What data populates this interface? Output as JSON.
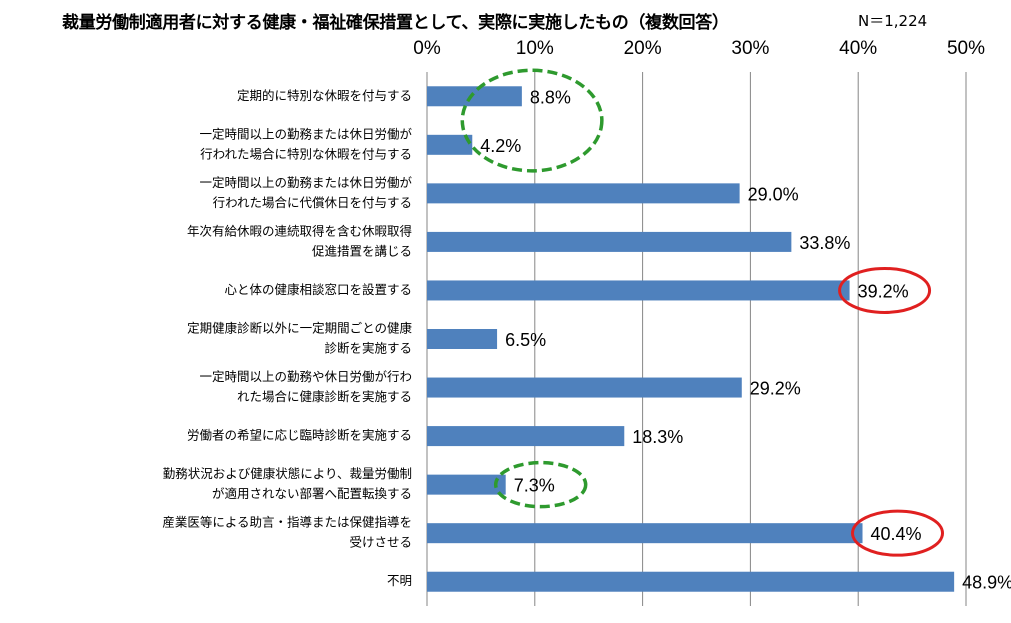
{
  "title": "裁量労働制適用者に対する健康・福祉確保措置として、実際に実施したもの（複数回答）",
  "sample_size": "N＝1,224",
  "colors": {
    "bar": "#4f81bd",
    "grid": "#868686",
    "highlight_red": "#e02020",
    "highlight_green": "#2e9a2e"
  },
  "chart_data": {
    "type": "bar",
    "orientation": "horizontal",
    "title": "裁量労働制適用者に対する健康・福祉確保措置として、実際に実施したもの（複数回答）",
    "xlim": [
      0,
      50
    ],
    "ticks": [
      "0%",
      "10%",
      "20%",
      "30%",
      "40%",
      "50%"
    ],
    "tick_values": [
      0,
      10,
      20,
      30,
      40,
      50
    ],
    "tick_position": "top",
    "grid": true,
    "categories": [
      [
        "定期的に特別な休暇を付与する"
      ],
      [
        "一定時間以上の勤務または休日労働が",
        "行われた場合に特別な休暇を付与する"
      ],
      [
        "一定時間以上の勤務または休日労働が",
        "行われた場合に代償休日を付与する"
      ],
      [
        "年次有給休暇の連続取得を含む休暇取得",
        "促進措置を講じる"
      ],
      [
        "心と体の健康相談窓口を設置する"
      ],
      [
        "定期健康診断以外に一定期間ごとの健康",
        "診断を実施する"
      ],
      [
        "一定時間以上の勤務や休日労働が行わ",
        "れた場合に健康診断を実施する"
      ],
      [
        "労働者の希望に応じ臨時診断を実施する"
      ],
      [
        "勤務状況および健康状態により、裁量労働制",
        "が適用されない部署へ配置転換する"
      ],
      [
        "産業医等による助言・指導または保健指導を",
        "受けさせる"
      ],
      [
        "不明"
      ]
    ],
    "values": [
      8.8,
      4.2,
      29.0,
      33.8,
      39.2,
      6.5,
      29.2,
      18.3,
      7.3,
      40.4,
      48.9
    ],
    "labels": [
      "8.8%",
      "4.2%",
      "29.0%",
      "33.8%",
      "39.2%",
      "6.5%",
      "29.2%",
      "18.3%",
      "7.3%",
      "40.4%",
      "48.9%"
    ],
    "annotations": [
      {
        "shape": "dashed-ellipse",
        "color": "green",
        "items": [
          0,
          1
        ]
      },
      {
        "shape": "ellipse",
        "color": "red",
        "items": [
          4
        ]
      },
      {
        "shape": "dashed-ellipse",
        "color": "green",
        "items": [
          8
        ]
      },
      {
        "shape": "ellipse",
        "color": "red",
        "items": [
          9
        ]
      }
    ]
  }
}
